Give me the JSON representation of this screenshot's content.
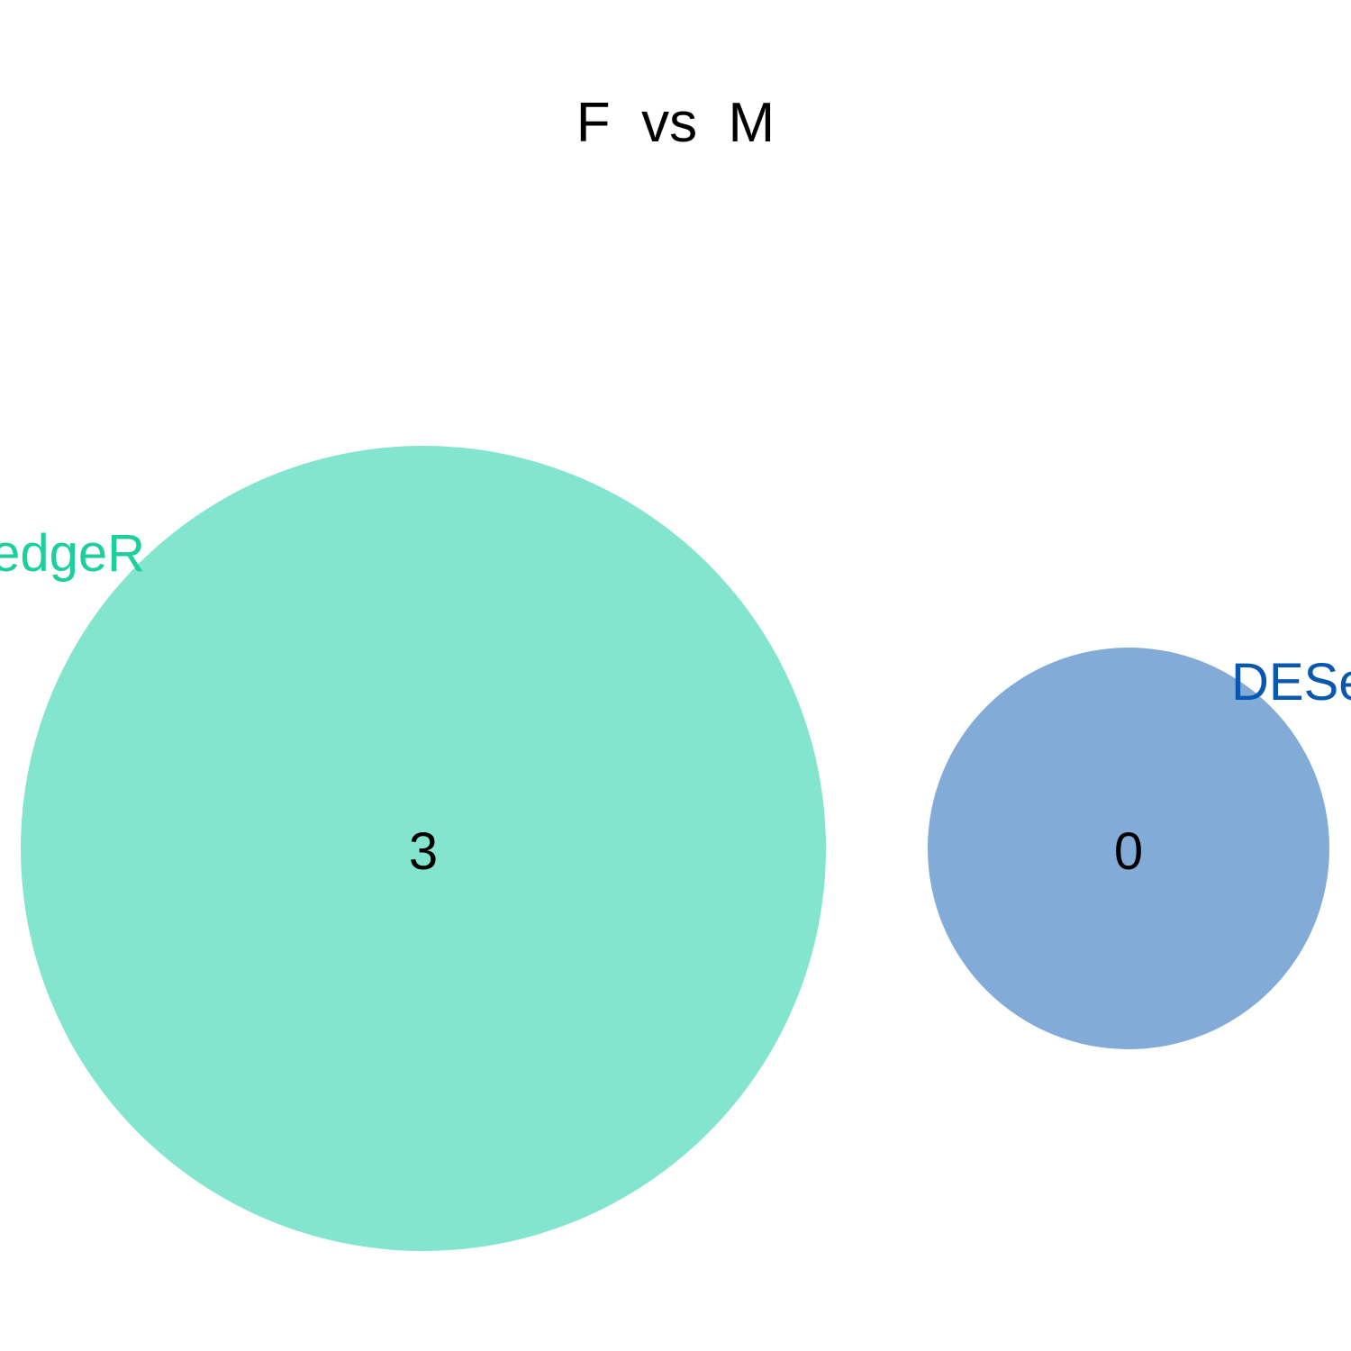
{
  "title": "F  vs  M",
  "sets": [
    {
      "name": "edgeR",
      "count": "3",
      "color": "#84e5ce",
      "label_color": "#1ccf9c"
    },
    {
      "name": "DESeq",
      "count": "0",
      "color": "#82abd8",
      "label_color": "#0a57b0"
    }
  ]
}
